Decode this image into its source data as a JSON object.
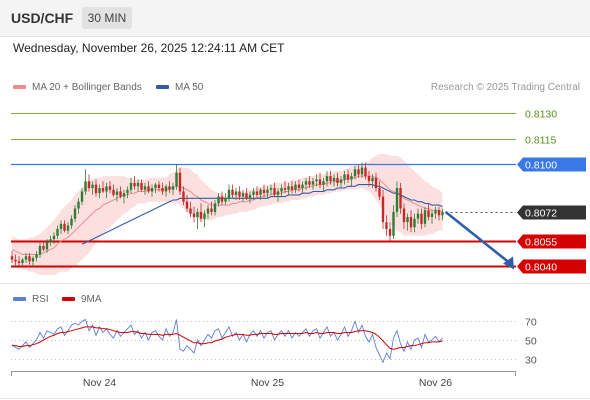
{
  "header": {
    "symbol": "USD/CHF",
    "timeframe": "30 MIN"
  },
  "datetime": "Wednesday, November 26, 2025 12:24:11 AM CET",
  "legend": {
    "ma20": {
      "label": "MA 20 + Bollinger Bands",
      "color": "#f08a8a"
    },
    "ma50": {
      "label": "MA 50",
      "color": "#2f5ea8"
    }
  },
  "copyright": "Research © 2025 Trading Central",
  "colors": {
    "bull": "#2e7d32",
    "bear": "#c62828",
    "resistance": "#7cb342",
    "pivot": "#3b78e7",
    "support": "#d50000",
    "band": "#fbd5d5",
    "arrow": "#2f5ea8",
    "rsi": "#5b7fd6",
    "rsi_ma": "#d50000"
  },
  "levels": [
    {
      "value": 0.813,
      "label": "0.8130",
      "type": "resistance"
    },
    {
      "value": 0.8115,
      "label": "0.8115",
      "type": "resistance"
    },
    {
      "value": 0.81,
      "label": "0.8100",
      "type": "pivot"
    },
    {
      "value": 0.8072,
      "label": "0.8072",
      "type": "last"
    },
    {
      "value": 0.8055,
      "label": "0.8055",
      "type": "support"
    },
    {
      "value": 0.804,
      "label": "0.8040",
      "type": "support"
    }
  ],
  "chart_data": {
    "type": "candlestick",
    "xlabels": [
      {
        "label": "Nov 24",
        "index": 25
      },
      {
        "label": "Nov 25",
        "index": 73
      },
      {
        "label": "Nov 26",
        "index": 121
      }
    ],
    "ylim": [
      0.803,
      0.814
    ],
    "candles": [
      [
        0.8046,
        0.8049,
        0.8042,
        0.8044
      ],
      [
        0.8044,
        0.8047,
        0.804,
        0.8043
      ],
      [
        0.8043,
        0.8046,
        0.8039,
        0.8042
      ],
      [
        0.8042,
        0.8045,
        0.804,
        0.8044
      ],
      [
        0.8044,
        0.8048,
        0.8042,
        0.8046
      ],
      [
        0.8046,
        0.8048,
        0.8041,
        0.8043
      ],
      [
        0.8043,
        0.8046,
        0.804,
        0.8045
      ],
      [
        0.8045,
        0.8049,
        0.8043,
        0.8047
      ],
      [
        0.8047,
        0.8054,
        0.8045,
        0.8052
      ],
      [
        0.8052,
        0.8055,
        0.8049,
        0.805
      ],
      [
        0.805,
        0.8056,
        0.8048,
        0.8054
      ],
      [
        0.8054,
        0.8058,
        0.8052,
        0.8056
      ],
      [
        0.8056,
        0.806,
        0.8053,
        0.8058
      ],
      [
        0.8058,
        0.8064,
        0.8056,
        0.8062
      ],
      [
        0.8062,
        0.8067,
        0.8059,
        0.8065
      ],
      [
        0.8065,
        0.8067,
        0.806,
        0.8061
      ],
      [
        0.8061,
        0.8066,
        0.8059,
        0.8064
      ],
      [
        0.8064,
        0.807,
        0.8062,
        0.8068
      ],
      [
        0.8068,
        0.8076,
        0.8066,
        0.8074
      ],
      [
        0.8074,
        0.808,
        0.8071,
        0.8078
      ],
      [
        0.8078,
        0.8086,
        0.8076,
        0.8084
      ],
      [
        0.8084,
        0.8097,
        0.8082,
        0.809
      ],
      [
        0.809,
        0.8094,
        0.8084,
        0.8086
      ],
      [
        0.8086,
        0.809,
        0.8082,
        0.8088
      ],
      [
        0.8088,
        0.8091,
        0.8081,
        0.8083
      ],
      [
        0.8083,
        0.8088,
        0.808,
        0.8086
      ],
      [
        0.8086,
        0.809,
        0.8083,
        0.8084
      ],
      [
        0.8084,
        0.8089,
        0.808,
        0.8087
      ],
      [
        0.8087,
        0.809,
        0.8083,
        0.8085
      ],
      [
        0.8085,
        0.8088,
        0.8081,
        0.8082
      ],
      [
        0.8082,
        0.8086,
        0.8078,
        0.8084
      ],
      [
        0.8084,
        0.8087,
        0.808,
        0.8081
      ],
      [
        0.8081,
        0.8085,
        0.8077,
        0.8083
      ],
      [
        0.8083,
        0.8087,
        0.808,
        0.8085
      ],
      [
        0.8085,
        0.8092,
        0.8083,
        0.8089
      ],
      [
        0.8089,
        0.8093,
        0.8085,
        0.8087
      ],
      [
        0.8087,
        0.8091,
        0.8084,
        0.8089
      ],
      [
        0.8089,
        0.8091,
        0.8084,
        0.8085
      ],
      [
        0.8085,
        0.8089,
        0.8082,
        0.8087
      ],
      [
        0.8087,
        0.809,
        0.8083,
        0.8084
      ],
      [
        0.8084,
        0.8088,
        0.8081,
        0.8086
      ],
      [
        0.8086,
        0.8089,
        0.8083,
        0.8088
      ],
      [
        0.8088,
        0.809,
        0.8084,
        0.8086
      ],
      [
        0.8086,
        0.8089,
        0.8082,
        0.8084
      ],
      [
        0.8084,
        0.8088,
        0.8081,
        0.8087
      ],
      [
        0.8087,
        0.809,
        0.8083,
        0.8085
      ],
      [
        0.8085,
        0.8089,
        0.8082,
        0.8087
      ],
      [
        0.8087,
        0.81,
        0.8085,
        0.8095
      ],
      [
        0.8095,
        0.8098,
        0.8082,
        0.8084
      ],
      [
        0.8084,
        0.8087,
        0.8076,
        0.8078
      ],
      [
        0.8078,
        0.8082,
        0.8072,
        0.8074
      ],
      [
        0.8074,
        0.8078,
        0.8069,
        0.8071
      ],
      [
        0.8071,
        0.8075,
        0.8066,
        0.8069
      ],
      [
        0.8069,
        0.8074,
        0.8062,
        0.8072
      ],
      [
        0.8072,
        0.8077,
        0.8066,
        0.8068
      ],
      [
        0.8068,
        0.8073,
        0.8063,
        0.8071
      ],
      [
        0.8071,
        0.8076,
        0.8068,
        0.8074
      ],
      [
        0.8074,
        0.8078,
        0.807,
        0.8072
      ],
      [
        0.8072,
        0.8079,
        0.807,
        0.8077
      ],
      [
        0.8077,
        0.8083,
        0.8075,
        0.8081
      ],
      [
        0.8081,
        0.8084,
        0.8076,
        0.8078
      ],
      [
        0.8078,
        0.8083,
        0.8076,
        0.808
      ],
      [
        0.808,
        0.8088,
        0.8078,
        0.8085
      ],
      [
        0.8085,
        0.8088,
        0.808,
        0.8082
      ],
      [
        0.8082,
        0.8086,
        0.8079,
        0.8084
      ],
      [
        0.8084,
        0.8087,
        0.8079,
        0.8081
      ],
      [
        0.8081,
        0.8085,
        0.8078,
        0.8083
      ],
      [
        0.8083,
        0.8086,
        0.8079,
        0.808
      ],
      [
        0.808,
        0.8084,
        0.8077,
        0.8082
      ],
      [
        0.8082,
        0.8086,
        0.8079,
        0.8084
      ],
      [
        0.8084,
        0.8087,
        0.808,
        0.8082
      ],
      [
        0.8082,
        0.8086,
        0.8079,
        0.8085
      ],
      [
        0.8085,
        0.8088,
        0.8081,
        0.8083
      ],
      [
        0.8083,
        0.8087,
        0.808,
        0.8085
      ],
      [
        0.8085,
        0.8088,
        0.8082,
        0.8086
      ],
      [
        0.8086,
        0.8089,
        0.8081,
        0.8082
      ],
      [
        0.8082,
        0.8086,
        0.8078,
        0.8084
      ],
      [
        0.8084,
        0.8088,
        0.8081,
        0.8086
      ],
      [
        0.8086,
        0.809,
        0.8083,
        0.8085
      ],
      [
        0.8085,
        0.8089,
        0.8082,
        0.8087
      ],
      [
        0.8087,
        0.809,
        0.8083,
        0.8085
      ],
      [
        0.8085,
        0.809,
        0.8083,
        0.8088
      ],
      [
        0.8088,
        0.8091,
        0.8084,
        0.8086
      ],
      [
        0.8086,
        0.809,
        0.8083,
        0.8088
      ],
      [
        0.8088,
        0.8092,
        0.8085,
        0.809
      ],
      [
        0.809,
        0.8093,
        0.8086,
        0.8088
      ],
      [
        0.8088,
        0.8092,
        0.8085,
        0.809
      ],
      [
        0.809,
        0.8094,
        0.8087,
        0.8091
      ],
      [
        0.8091,
        0.8095,
        0.8086,
        0.8088
      ],
      [
        0.8088,
        0.8092,
        0.8084,
        0.809
      ],
      [
        0.809,
        0.8096,
        0.8087,
        0.8093
      ],
      [
        0.8093,
        0.8096,
        0.8088,
        0.809
      ],
      [
        0.809,
        0.8094,
        0.8087,
        0.8092
      ],
      [
        0.8092,
        0.8095,
        0.8087,
        0.8089
      ],
      [
        0.8089,
        0.8093,
        0.8086,
        0.8091
      ],
      [
        0.8091,
        0.8096,
        0.8088,
        0.8094
      ],
      [
        0.8094,
        0.8097,
        0.8089,
        0.8091
      ],
      [
        0.8091,
        0.8095,
        0.8087,
        0.8093
      ],
      [
        0.8093,
        0.8099,
        0.8091,
        0.8097
      ],
      [
        0.8097,
        0.81,
        0.8092,
        0.8094
      ],
      [
        0.8094,
        0.8101,
        0.8092,
        0.8098
      ],
      [
        0.8098,
        0.8101,
        0.8091,
        0.8093
      ],
      [
        0.8093,
        0.8096,
        0.8087,
        0.809
      ],
      [
        0.809,
        0.8094,
        0.8086,
        0.8092
      ],
      [
        0.8092,
        0.8095,
        0.8084,
        0.8086
      ],
      [
        0.8086,
        0.809,
        0.8079,
        0.8081
      ],
      [
        0.8081,
        0.8085,
        0.8062,
        0.8066
      ],
      [
        0.8066,
        0.807,
        0.8058,
        0.8062
      ],
      [
        0.8062,
        0.8066,
        0.8055,
        0.8058
      ],
      [
        0.8058,
        0.8076,
        0.8056,
        0.8072
      ],
      [
        0.8072,
        0.809,
        0.8069,
        0.8086
      ],
      [
        0.8086,
        0.8089,
        0.8071,
        0.8074
      ],
      [
        0.8074,
        0.8077,
        0.8062,
        0.8066
      ],
      [
        0.8066,
        0.8071,
        0.8061,
        0.8069
      ],
      [
        0.8069,
        0.8073,
        0.806,
        0.8063
      ],
      [
        0.8063,
        0.8071,
        0.806,
        0.8068
      ],
      [
        0.8068,
        0.8074,
        0.8065,
        0.8071
      ],
      [
        0.8071,
        0.8074,
        0.8062,
        0.8065
      ],
      [
        0.8065,
        0.8075,
        0.8063,
        0.8073
      ],
      [
        0.8073,
        0.8077,
        0.8067,
        0.8069
      ],
      [
        0.8069,
        0.8073,
        0.8065,
        0.8071
      ],
      [
        0.8071,
        0.8075,
        0.8068,
        0.8073
      ],
      [
        0.8073,
        0.8075,
        0.8067,
        0.807
      ],
      [
        0.807,
        0.8074,
        0.8067,
        0.8072
      ]
    ],
    "ma20": [
      0.805,
      0.8049,
      0.8048,
      0.8047,
      0.8047,
      0.8047,
      0.8047,
      0.8047,
      0.8047,
      0.8048,
      0.8049,
      0.805,
      0.8051,
      0.8053,
      0.8055,
      0.8056,
      0.8057,
      0.8059,
      0.8061,
      0.8063,
      0.8065,
      0.8067,
      0.8069,
      0.8071,
      0.8073,
      0.8074,
      0.8076,
      0.8077,
      0.8078,
      0.8079,
      0.808,
      0.8081,
      0.8082,
      0.8082,
      0.8083,
      0.8083,
      0.8084,
      0.8084,
      0.8084,
      0.8085,
      0.8085,
      0.8085,
      0.8085,
      0.8085,
      0.8085,
      0.8086,
      0.8086,
      0.8087,
      0.8087,
      0.8086,
      0.8085,
      0.8084,
      0.8082,
      0.8081,
      0.8079,
      0.8078,
      0.8077,
      0.8076,
      0.8076,
      0.8076,
      0.8076,
      0.8076,
      0.8076,
      0.8077,
      0.8077,
      0.8078,
      0.8078,
      0.8078,
      0.8079,
      0.8079,
      0.808,
      0.8081,
      0.8081,
      0.8082,
      0.8082,
      0.8083,
      0.8083,
      0.8083,
      0.8084,
      0.8084,
      0.8085,
      0.8085,
      0.8085,
      0.8086,
      0.8086,
      0.8087,
      0.8087,
      0.8088,
      0.8088,
      0.8088,
      0.8089,
      0.8089,
      0.809,
      0.809,
      0.809,
      0.8091,
      0.8091,
      0.8092,
      0.8092,
      0.8093,
      0.8093,
      0.8093,
      0.8093,
      0.8093,
      0.8092,
      0.8091,
      0.8089,
      0.8087,
      0.8085,
      0.8084,
      0.8083,
      0.8082,
      0.808,
      0.8079,
      0.8078,
      0.8077,
      0.8076,
      0.8075,
      0.8074,
      0.8074,
      0.8073,
      0.8073,
      0.8073,
      0.8072
    ],
    "ma50": [
      null,
      null,
      null,
      null,
      null,
      null,
      null,
      null,
      null,
      null,
      null,
      null,
      null,
      null,
      null,
      null,
      null,
      null,
      null,
      null,
      0.8053,
      0.8054,
      0.8055,
      0.8056,
      0.8057,
      0.8058,
      0.8059,
      0.806,
      0.8061,
      0.8062,
      0.8063,
      0.8064,
      0.8065,
      0.8066,
      0.8067,
      0.8068,
      0.8069,
      0.807,
      0.8071,
      0.8072,
      0.8073,
      0.8074,
      0.8075,
      0.8076,
      0.8077,
      0.8078,
      0.8079,
      0.8079,
      0.808,
      0.808,
      0.808,
      0.808,
      0.808,
      0.808,
      0.808,
      0.808,
      0.808,
      0.808,
      0.808,
      0.808,
      0.808,
      0.808,
      0.808,
      0.808,
      0.808,
      0.808,
      0.808,
      0.808,
      0.808,
      0.808,
      0.808,
      0.808,
      0.808,
      0.808,
      0.8081,
      0.8081,
      0.8081,
      0.8081,
      0.8081,
      0.8082,
      0.8082,
      0.8082,
      0.8082,
      0.8083,
      0.8083,
      0.8083,
      0.8084,
      0.8084,
      0.8084,
      0.8084,
      0.8085,
      0.8085,
      0.8085,
      0.8086,
      0.8086,
      0.8086,
      0.8087,
      0.8087,
      0.8087,
      0.8088,
      0.8088,
      0.8088,
      0.8088,
      0.8088,
      0.8087,
      0.8087,
      0.8086,
      0.8085,
      0.8084,
      0.8083,
      0.8083,
      0.8082,
      0.8081,
      0.808,
      0.8079,
      0.8079,
      0.8078,
      0.8078,
      0.8077,
      0.8077,
      0.8076,
      0.8076,
      0.8076,
      0.8075
    ],
    "band_halfwidth": [
      0.0008,
      0.0008,
      0.0008,
      0.0009,
      0.0009,
      0.001,
      0.001,
      0.0011,
      0.0012,
      0.0013,
      0.0014,
      0.0015,
      0.0016,
      0.0017,
      0.0018,
      0.0019,
      0.002,
      0.002,
      0.0021,
      0.0021,
      0.0021,
      0.0021,
      0.0021,
      0.002,
      0.0019,
      0.0018,
      0.0017,
      0.0016,
      0.0015,
      0.0014,
      0.0013,
      0.0012,
      0.0011,
      0.001,
      0.0009,
      0.0008,
      0.0007,
      0.0007,
      0.0007,
      0.0007,
      0.0007,
      0.0007,
      0.0007,
      0.0007,
      0.0007,
      0.0008,
      0.0009,
      0.001,
      0.0011,
      0.0012,
      0.0013,
      0.0013,
      0.0013,
      0.0013,
      0.0012,
      0.0011,
      0.001,
      0.0009,
      0.0008,
      0.0007,
      0.0007,
      0.0006,
      0.0006,
      0.0006,
      0.0006,
      0.0006,
      0.0006,
      0.0006,
      0.0006,
      0.0006,
      0.0006,
      0.0006,
      0.0006,
      0.0006,
      0.0006,
      0.0006,
      0.0006,
      0.0006,
      0.0006,
      0.0006,
      0.0006,
      0.0006,
      0.0006,
      0.0006,
      0.0006,
      0.0006,
      0.0006,
      0.0006,
      0.0006,
      0.0006,
      0.0006,
      0.0006,
      0.0006,
      0.0006,
      0.0006,
      0.0006,
      0.0006,
      0.0007,
      0.0007,
      0.0007,
      0.0007,
      0.0008,
      0.0009,
      0.0011,
      0.0013,
      0.0015,
      0.0017,
      0.0019,
      0.002,
      0.0021,
      0.0022,
      0.0022,
      0.0022,
      0.0021,
      0.002,
      0.0019,
      0.0018,
      0.0017,
      0.0016,
      0.0015,
      0.0014,
      0.0013,
      0.0012,
      0.0011
    ],
    "projection": {
      "from_value": 0.8072,
      "to_value": 0.804
    },
    "rsi": {
      "label": "RSI",
      "ma_label": "9MA",
      "yticks": [
        70,
        50,
        30
      ],
      "ylim": [
        20,
        80
      ],
      "values": [
        45,
        42,
        40,
        44,
        48,
        42,
        46,
        50,
        58,
        52,
        60,
        58,
        56,
        62,
        64,
        55,
        60,
        66,
        68,
        66,
        70,
        72,
        60,
        66,
        55,
        64,
        58,
        62,
        56,
        52,
        60,
        54,
        58,
        62,
        66,
        56,
        60,
        52,
        58,
        50,
        58,
        60,
        54,
        50,
        62,
        54,
        58,
        72,
        40,
        38,
        44,
        40,
        36,
        50,
        44,
        50,
        56,
        52,
        60,
        62,
        52,
        58,
        64,
        54,
        58,
        50,
        56,
        48,
        56,
        60,
        54,
        60,
        52,
        58,
        60,
        50,
        56,
        60,
        54,
        60,
        52,
        58,
        54,
        58,
        62,
        54,
        60,
        62,
        52,
        58,
        64,
        54,
        58,
        50,
        56,
        64,
        54,
        60,
        70,
        58,
        66,
        54,
        48,
        56,
        42,
        34,
        26,
        36,
        30,
        52,
        60,
        46,
        38,
        48,
        40,
        50,
        52,
        42,
        56,
        48,
        50,
        54,
        48,
        52
      ],
      "ma_values": [
        44,
        44,
        43,
        43,
        44,
        44,
        45,
        46,
        48,
        50,
        52,
        54,
        55,
        57,
        58,
        58,
        59,
        60,
        61,
        62,
        63,
        64,
        64,
        64,
        63,
        63,
        62,
        62,
        61,
        60,
        59,
        58,
        58,
        58,
        59,
        59,
        58,
        57,
        57,
        56,
        56,
        56,
        56,
        55,
        56,
        56,
        56,
        57,
        55,
        53,
        51,
        49,
        47,
        47,
        46,
        46,
        47,
        47,
        49,
        50,
        51,
        53,
        54,
        55,
        56,
        56,
        56,
        55,
        55,
        56,
        56,
        57,
        57,
        57,
        57,
        56,
        56,
        57,
        57,
        57,
        57,
        57,
        57,
        57,
        58,
        57,
        57,
        58,
        57,
        57,
        58,
        58,
        58,
        57,
        57,
        58,
        58,
        58,
        59,
        60,
        60,
        60,
        59,
        58,
        56,
        53,
        49,
        45,
        41,
        40,
        41,
        42,
        42,
        43,
        44,
        44,
        45,
        46,
        47,
        47,
        48,
        48,
        48,
        49
      ]
    }
  }
}
